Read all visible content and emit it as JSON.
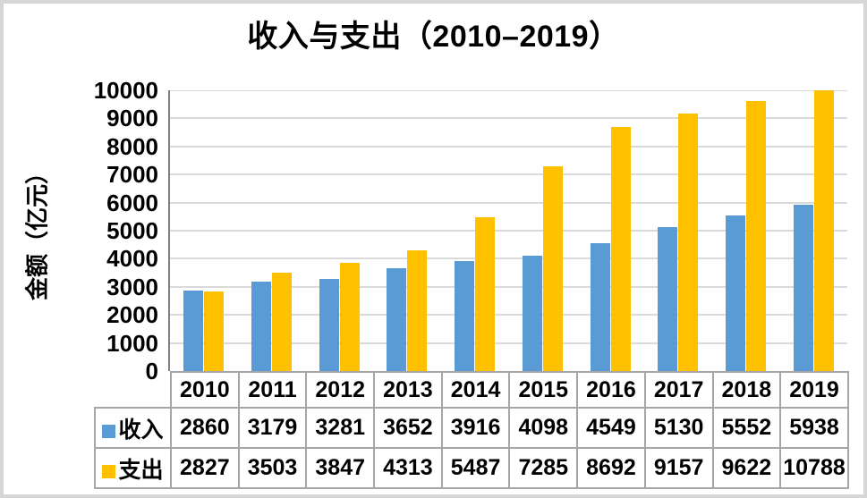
{
  "chart_data": {
    "type": "bar",
    "title": "收入与支出（2010–2019）",
    "ylabel": "金额（亿元）",
    "xlabel": "",
    "categories": [
      "2010",
      "2011",
      "2012",
      "2013",
      "2014",
      "2015",
      "2016",
      "2017",
      "2018",
      "2019"
    ],
    "series": [
      {
        "id": "income",
        "name": "收入",
        "color": "#5B9BD5",
        "values": [
          2860,
          3179,
          3281,
          3652,
          3916,
          4098,
          4549,
          5130,
          5552,
          5938
        ]
      },
      {
        "id": "expense",
        "name": "支出",
        "color": "#FFC000",
        "values": [
          2827,
          3503,
          3847,
          4313,
          5487,
          7285,
          8692,
          9157,
          9622,
          10788
        ]
      }
    ],
    "ylim": [
      0,
      10000
    ],
    "ytick_step": 1000,
    "grid": true,
    "legend_position": "data-table-row-headers",
    "data_table": true
  },
  "colors": {
    "gridline": "#DADADA",
    "axis_line": "#7F7F7F",
    "table_border": "#A6A6A6",
    "frame_border": "#D6D6D6",
    "text": "#000000",
    "background": "#FFFFFF"
  }
}
